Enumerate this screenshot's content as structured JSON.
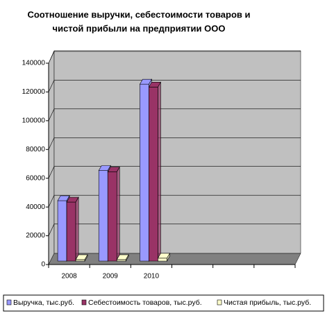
{
  "chart_data": {
    "type": "bar3d",
    "title": [
      "Соотношение выручки, себестоимости товаров и",
      "чистой прибыли на предприятии ООО"
    ],
    "categories": [
      "2008",
      "2009",
      "2010",
      null,
      null,
      null
    ],
    "series": [
      {
        "name": "Выручка, тыс.руб.",
        "color": "#9999ff",
        "values": [
          42000,
          63000,
          123000,
          null,
          null,
          null
        ]
      },
      {
        "name": "Себестоимость товаров, тыс.руб.",
        "color": "#993366",
        "values": [
          41000,
          62000,
          121000,
          null,
          null,
          null
        ]
      },
      {
        "name": "Чистая прибыль, тыс.руб.",
        "color": "#ffffcc",
        "values": [
          1000,
          1000,
          2000,
          null,
          null,
          null
        ]
      }
    ],
    "ylim": [
      0,
      140000
    ],
    "yticks": [
      0,
      20000,
      40000,
      60000,
      80000,
      100000,
      120000,
      140000
    ],
    "grid": true,
    "legend": "bottom"
  }
}
